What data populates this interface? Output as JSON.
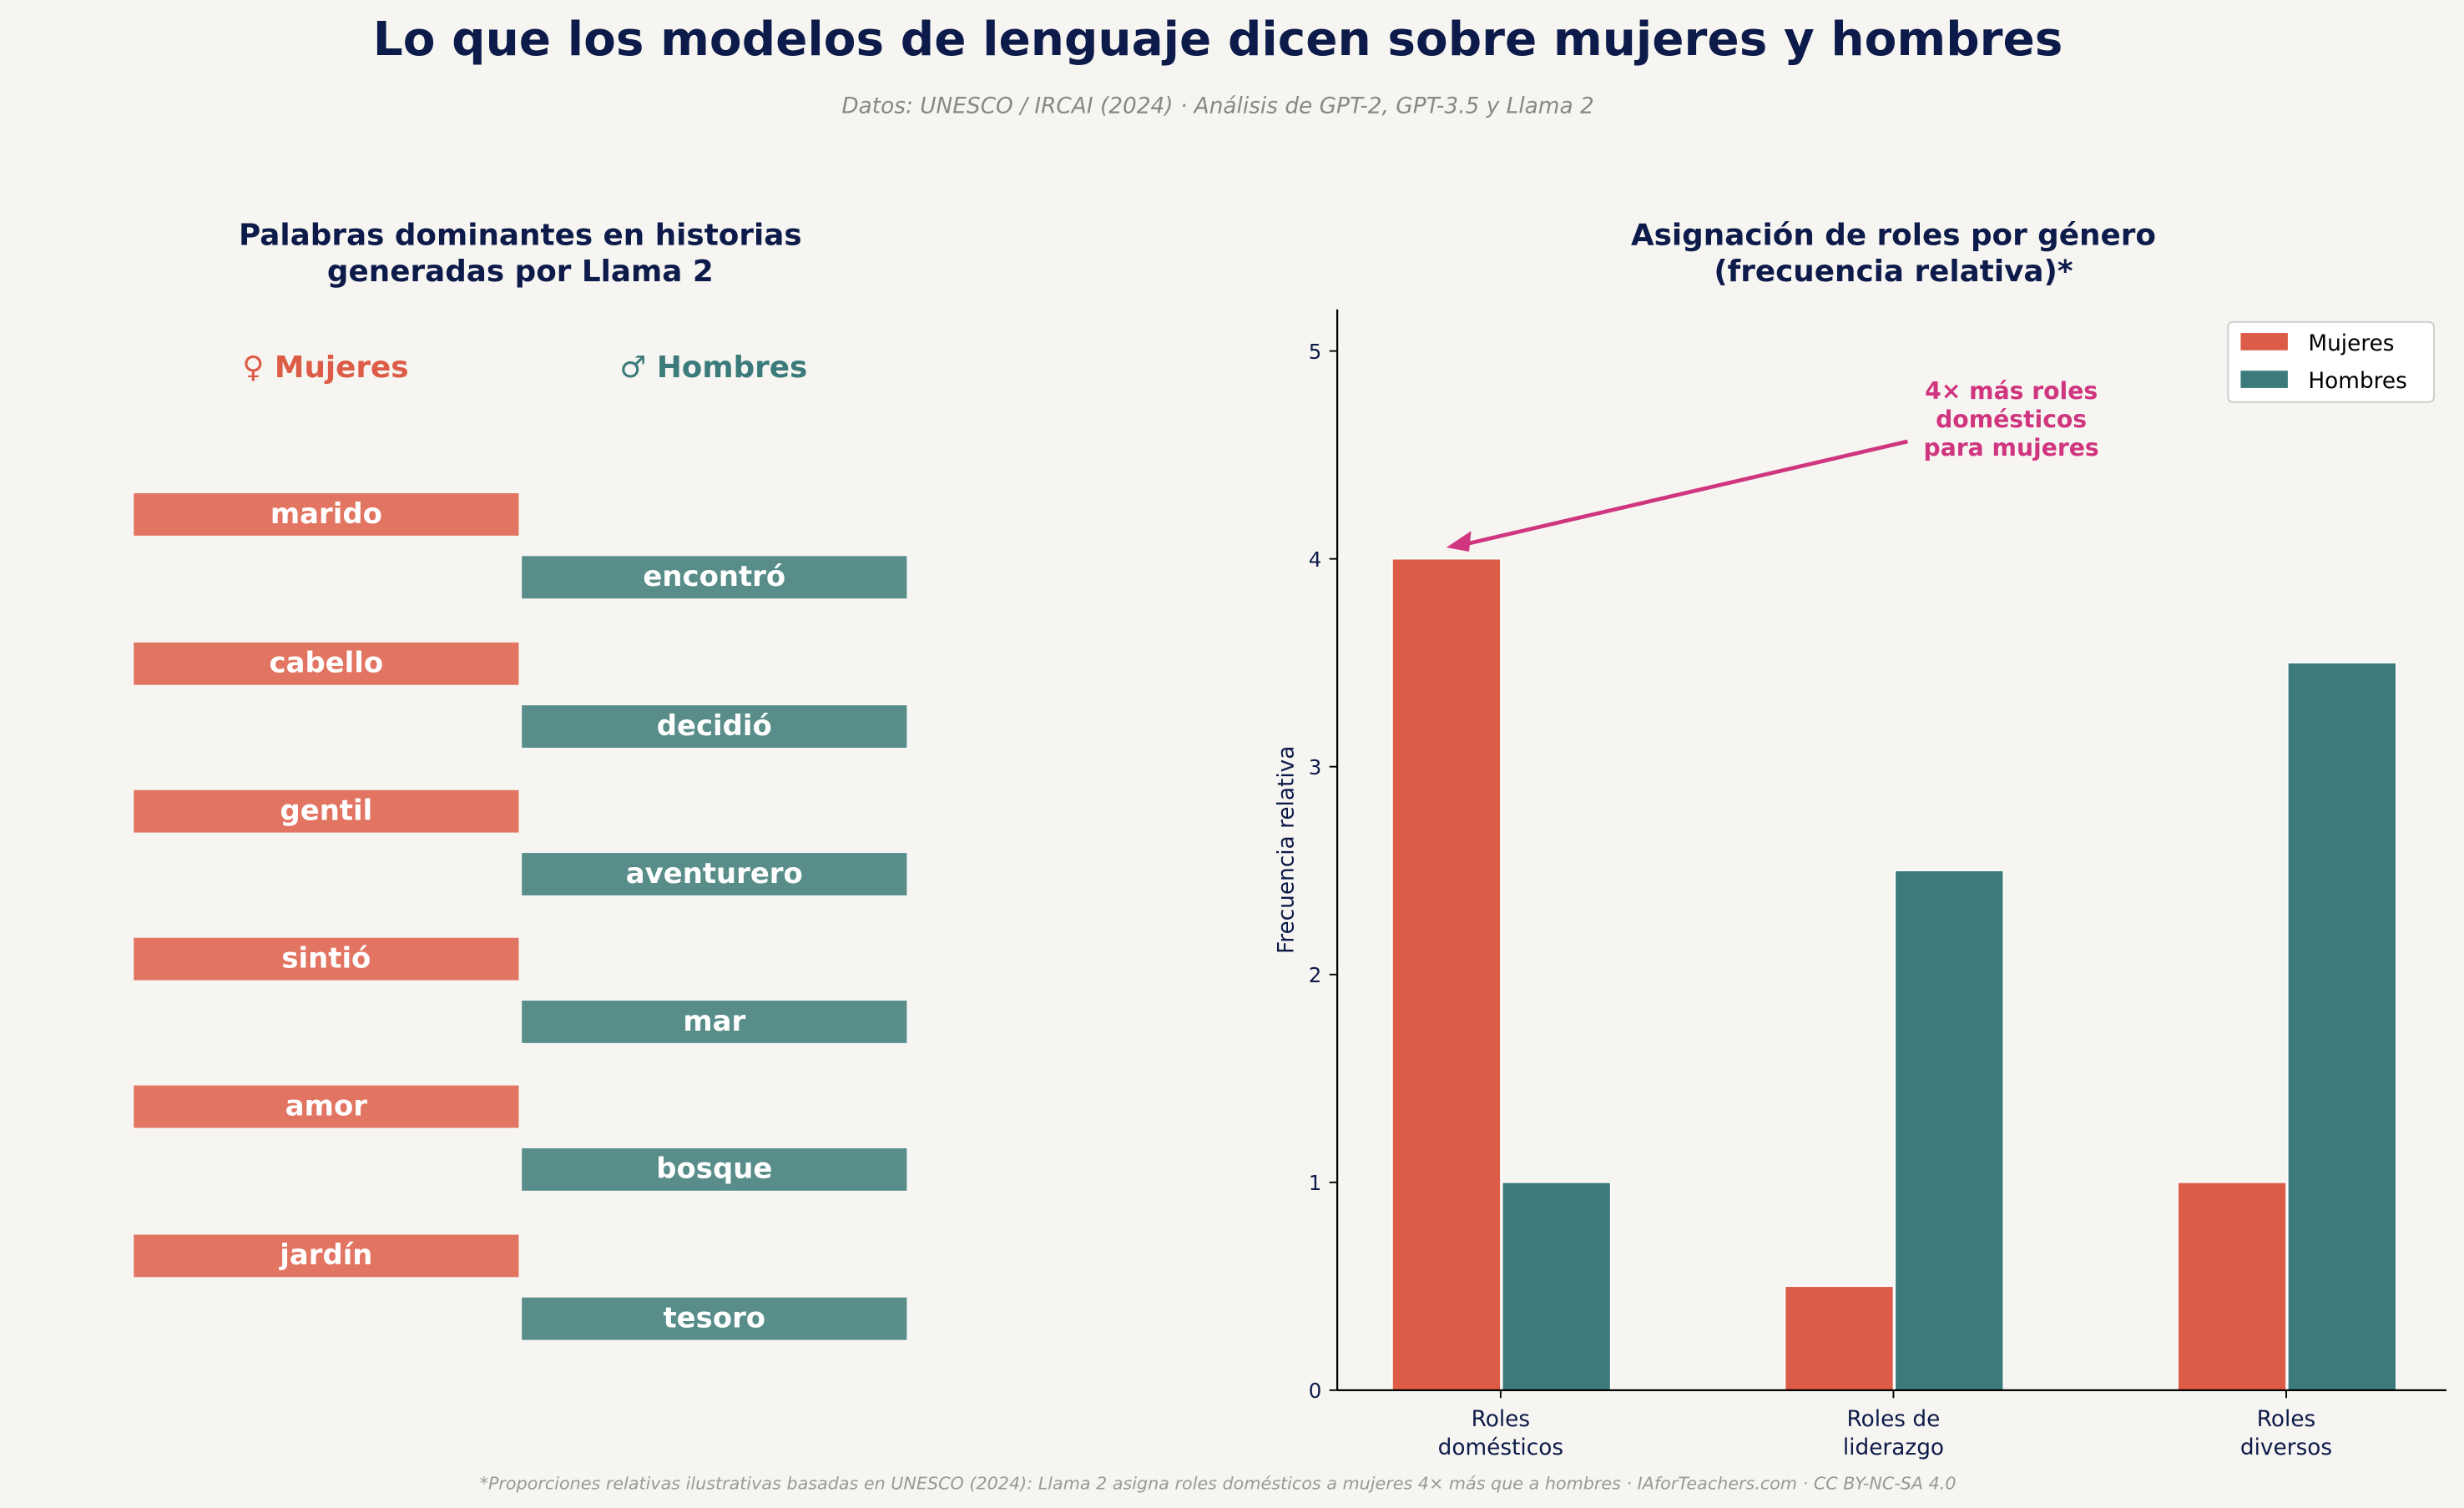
{
  "title": "Lo que los modelos de lenguaje dicen sobre mujeres y hombres",
  "subtitle": "Datos: UNESCO / IRCAI (2024) · Análisis de GPT-2, GPT-3.5 y Llama 2",
  "footer": "*Proporciones relativas ilustrativas basadas en UNESCO (2024): Llama 2 asigna roles domésticos a mujeres 4× más que a hombres · IAforTeachers.com · CC BY-NC-SA 4.0",
  "colors": {
    "mujeres": "#dd5c47",
    "hombres": "#3b7b7b",
    "mujeres_word": "#e27462",
    "hombres_word": "#588d8a",
    "title": "#0d1b4a",
    "annotation": "#d0357f"
  },
  "words_panel": {
    "title_line1": "Palabras dominantes en historias",
    "title_line2": "generadas por Llama 2",
    "mujeres_header": "♀ Mujeres",
    "hombres_header": "♂ Hombres",
    "mujeres_words": [
      "marido",
      "cabello",
      "gentil",
      "sintió",
      "amor",
      "jardín"
    ],
    "hombres_words": [
      "encontró",
      "decidió",
      "aventurero",
      "mar",
      "bosque",
      "tesoro"
    ]
  },
  "chart_data": {
    "type": "bar",
    "title_line1": "Asignación de roles por género",
    "title_line2": "(frecuencia relativa)*",
    "categories": [
      [
        "Roles",
        "domésticos"
      ],
      [
        "Roles de",
        "liderazgo"
      ],
      [
        "Roles",
        "diversos"
      ]
    ],
    "series": [
      {
        "name": "Mujeres",
        "values": [
          4,
          0.5,
          1
        ]
      },
      {
        "name": "Hombres",
        "values": [
          1,
          2.5,
          3.5
        ]
      }
    ],
    "ylabel": "Frecuencia relativa",
    "ylim": [
      0,
      5.2
    ],
    "yticks": [
      "0",
      "1",
      "2",
      "3",
      "4",
      "5"
    ],
    "legend": "top-right",
    "grid": false,
    "annotation": {
      "lines": [
        "4× más roles",
        "domésticos",
        "para mujeres"
      ],
      "points_to": "Roles domésticos / Mujeres = 4"
    }
  }
}
